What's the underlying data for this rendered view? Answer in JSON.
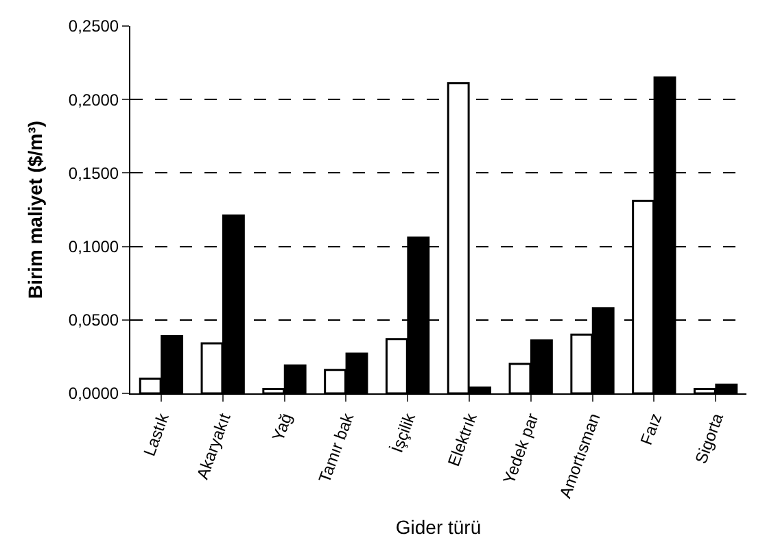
{
  "chart_data": {
    "type": "bar",
    "xlabel": "Gider türü",
    "ylabel": "Birim maliyet ($/m³)",
    "categories": [
      "Lastık",
      "Akaryakıt",
      "Yağ",
      "Tamır bak",
      "İşçilik",
      "Elektrık",
      "Yedek par",
      "Amortısman",
      "Faız",
      "Sigorta"
    ],
    "series": [
      {
        "color": "#ffffff",
        "values": [
          0.01,
          0.034,
          0.003,
          0.016,
          0.037,
          0.211,
          0.02,
          0.04,
          0.131,
          0.003
        ]
      },
      {
        "color": "#000000",
        "values": [
          0.039,
          0.121,
          0.019,
          0.027,
          0.106,
          0.004,
          0.036,
          0.058,
          0.215,
          0.006
        ]
      }
    ],
    "ylim": [
      0,
      0.25
    ],
    "yticks": [
      {
        "value": 0,
        "label": "0,0000"
      },
      {
        "value": 0.05,
        "label": "0,0500"
      },
      {
        "value": 0.1,
        "label": "0,1000"
      },
      {
        "value": 0.15,
        "label": "0,1500"
      },
      {
        "value": 0.2,
        "label": "0,2000"
      },
      {
        "value": 0.25,
        "label": "0,2500"
      }
    ],
    "grid": "y",
    "legend": false
  }
}
